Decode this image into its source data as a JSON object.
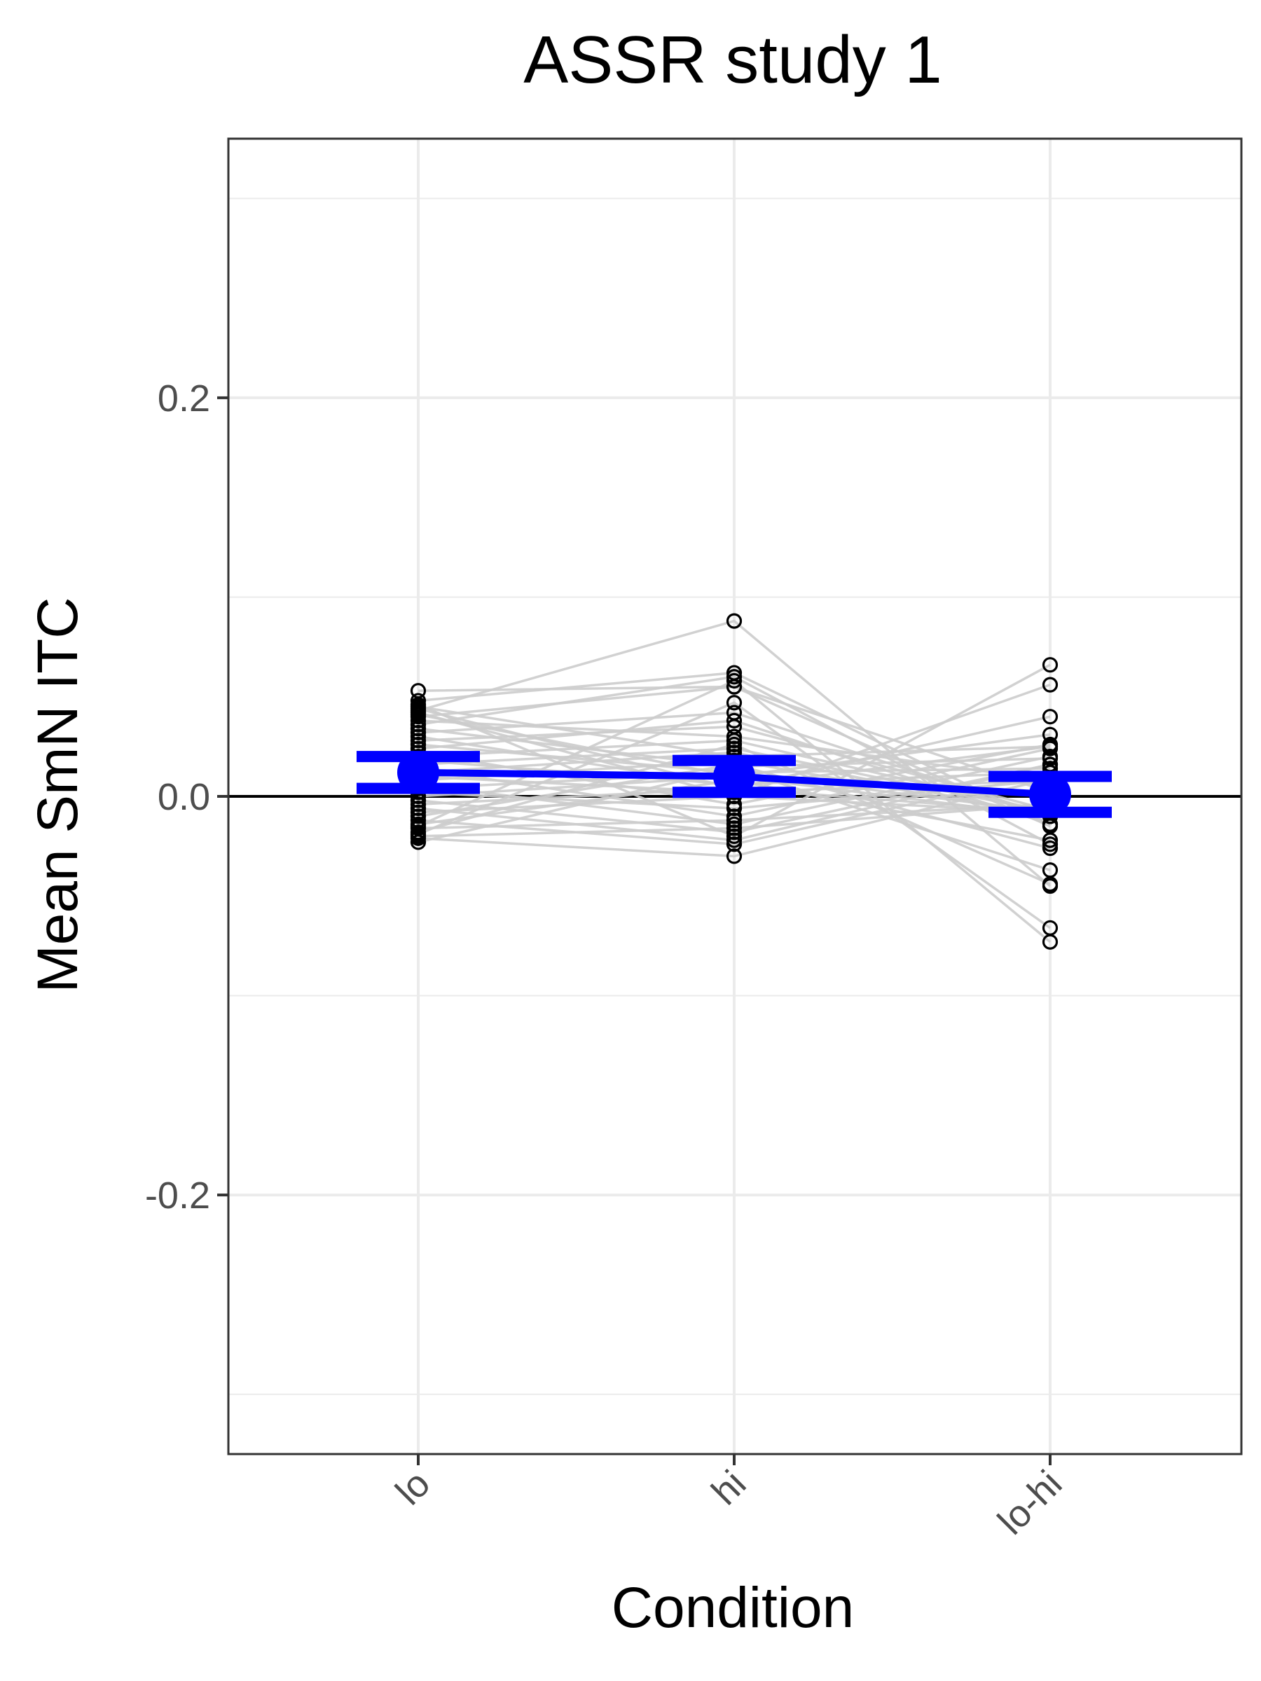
{
  "chart_data": {
    "type": "line",
    "title": "ASSR study 1",
    "xlabel": "Condition",
    "ylabel": "Mean SmN ITC",
    "categories": [
      "lo",
      "hi",
      "lo-hi"
    ],
    "ylim": [
      -0.33,
      0.33
    ],
    "yticks": [
      -0.2,
      0.0,
      0.2
    ],
    "yticklabels": [
      "-0.2",
      "0.0",
      "0.2"
    ],
    "grid": true,
    "legend": "none",
    "reference_line": {
      "y": 0.0,
      "color": "#000000"
    },
    "colors": {
      "summary": "#0000ff",
      "subject_lines": "#cccccc",
      "subject_points": "#000000",
      "grid": "#ebebeb",
      "panel_border": "#333333"
    },
    "summary": {
      "values": [
        0.012,
        0.01,
        0.001
      ],
      "error_lower": [
        0.004,
        0.002,
        -0.008
      ],
      "error_upper": [
        0.02,
        0.018,
        0.01
      ]
    },
    "subjects": [
      [
        0.053,
        0.055,
        0.002
      ],
      [
        0.048,
        0.062,
        -0.014
      ],
      [
        0.045,
        0.02,
        0.025
      ],
      [
        0.043,
        0.088,
        -0.045
      ],
      [
        0.041,
        0.01,
        0.031
      ],
      [
        0.04,
        0.055,
        -0.015
      ],
      [
        0.038,
        0.03,
        0.008
      ],
      [
        0.036,
        0.06,
        -0.024
      ],
      [
        0.034,
        0.015,
        0.019
      ],
      [
        0.032,
        0.042,
        -0.01
      ],
      [
        0.03,
        0.005,
        0.025
      ],
      [
        0.028,
        0.035,
        -0.007
      ],
      [
        0.026,
        0.012,
        0.014
      ],
      [
        0.024,
        0.038,
        -0.014
      ],
      [
        0.022,
        -0.004,
        0.026
      ],
      [
        0.02,
        0.028,
        -0.008
      ],
      [
        0.018,
        0.006,
        0.012
      ],
      [
        0.016,
        0.024,
        -0.008
      ],
      [
        0.014,
        -0.01,
        0.024
      ],
      [
        0.012,
        0.022,
        -0.01
      ],
      [
        0.01,
        0.002,
        0.008
      ],
      [
        0.008,
        0.018,
        -0.01
      ],
      [
        0.006,
        -0.014,
        0.02
      ],
      [
        0.004,
        0.012,
        -0.008
      ],
      [
        0.002,
        -0.006,
        0.008
      ],
      [
        0.0,
        0.01,
        -0.01
      ],
      [
        -0.002,
        -0.018,
        0.016
      ],
      [
        -0.004,
        0.004,
        -0.008
      ],
      [
        -0.006,
        -0.022,
        0.016
      ],
      [
        -0.008,
        0.0,
        -0.008
      ],
      [
        -0.01,
        0.016,
        -0.026
      ],
      [
        -0.012,
        -0.024,
        0.012
      ],
      [
        -0.014,
        0.008,
        -0.022
      ],
      [
        -0.016,
        -0.012,
        -0.004
      ],
      [
        -0.018,
        0.026,
        -0.044
      ],
      [
        -0.02,
        -0.016,
        -0.004
      ],
      [
        -0.021,
        -0.03,
        0.009
      ],
      [
        -0.023,
        0.014,
        -0.037
      ],
      [
        0.046,
        -0.02,
        0.066
      ],
      [
        0.044,
        0.004,
        0.04
      ],
      [
        -0.019,
        0.047,
        -0.066
      ],
      [
        -0.015,
        0.058,
        -0.073
      ],
      [
        0.042,
        0.0,
        0.056
      ]
    ]
  }
}
